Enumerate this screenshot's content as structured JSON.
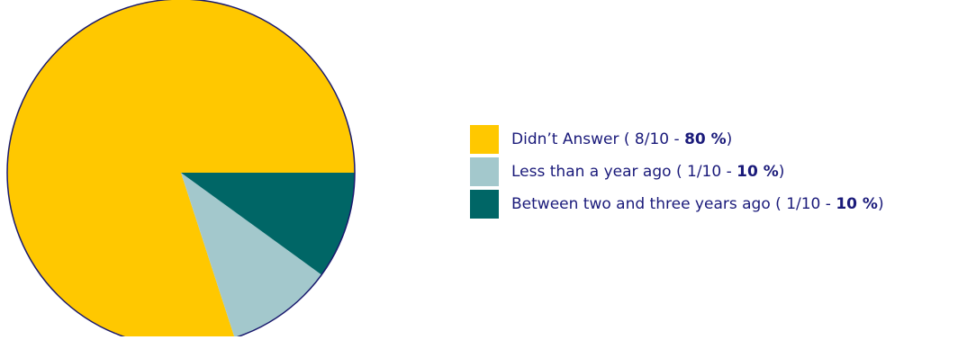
{
  "chart_data": {
    "type": "pie",
    "start_angle_deg": 0,
    "direction": "counterclockwise",
    "slices": [
      {
        "label": "Didn’t Answer",
        "count": 8,
        "total": 10,
        "percent": 80,
        "color": "#ffc800"
      },
      {
        "label": "Less than a year ago",
        "count": 1,
        "total": 10,
        "percent": 10,
        "color": "#a3c8cc"
      },
      {
        "label": "Between two and three years ago",
        "count": 1,
        "total": 10,
        "percent": 10,
        "color": "#006666"
      }
    ],
    "legend_position": "right",
    "outline_color": "#1a1a6e"
  },
  "legend": {
    "items": [
      {
        "label": "Didn’t Answer",
        "open": " ( ",
        "fraction": "8/10",
        "sep": " - ",
        "pct_text": "80 %",
        "close": ")"
      },
      {
        "label": "Less than a year ago",
        "open": " ( ",
        "fraction": "1/10",
        "sep": " - ",
        "pct_text": "10 %",
        "close": ")"
      },
      {
        "label": "Between two and three years ago",
        "open": " ( ",
        "fraction": "1/10",
        "sep": " - ",
        "pct_text": "10 %",
        "close": ")"
      }
    ]
  }
}
